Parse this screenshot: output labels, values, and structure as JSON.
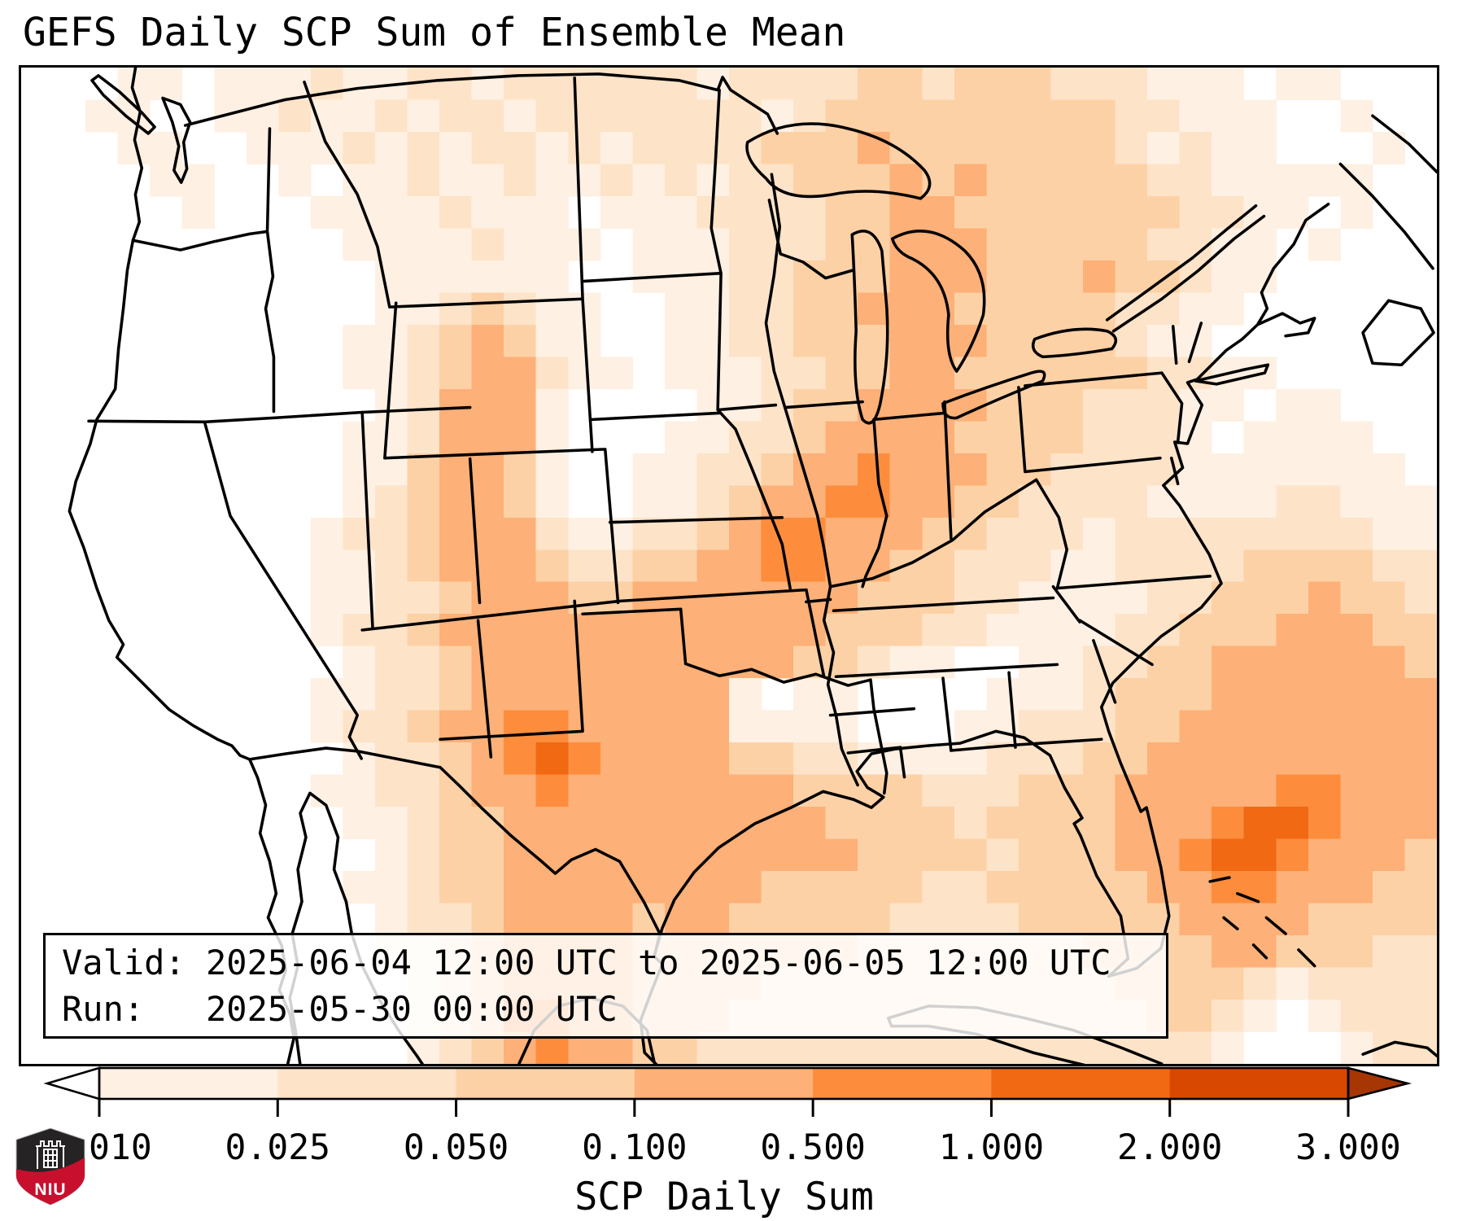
{
  "title": {
    "text": "GEFS Daily SCP Sum of Ensemble Mean"
  },
  "info_box": {
    "line1": "Valid: 2025-06-04 12:00 UTC to 2025-06-05 12:00 UTC",
    "line2": "Run:   2025-05-30 00:00 UTC"
  },
  "logo": {
    "label": "NIU",
    "shield_color": "#262324",
    "band_color": "#c8102e",
    "art_color": "#ffffff"
  },
  "chart_data": {
    "type": "heatmap",
    "title": "GEFS Daily SCP Sum of Ensemble Mean",
    "colorbar_label": "SCP Daily Sum",
    "boundaries": [
      0.01,
      0.025,
      0.05,
      0.1,
      0.5,
      1.0,
      2.0,
      3.0
    ],
    "tick_labels": [
      "0.010",
      "0.025",
      "0.050",
      "0.100",
      "0.500",
      "1.000",
      "2.000",
      "3.000"
    ],
    "extend": "both",
    "palette": {
      "under": "#ffffff",
      "bins": [
        "#fef0e2",
        "#fde3c8",
        "#fdd1a6",
        "#fdb077",
        "#fd8d3c",
        "#f16913",
        "#d94801"
      ],
      "over": "#a63603"
    },
    "region": "CONUS",
    "grid": {
      "cols": 44,
      "rows": 31,
      "legend": "one char per cell; 0 = below 0.01 (white), 1-7 = palette bins, 8 = above 3.0",
      "rows_data": [
        "00011011121122122222212222332333222111011000",
        "00110011211212212222222123333333332211100100",
        "00011001112121221212222333433333332121100010",
        "00001100101121121121212233343433333221111100",
        "00000100011112111011122223344333333322110100",
        "00000000001111211101112223344433333221101000",
        "00000000000111111001112233344433343321100000",
        "00000000000112321100112233444333332211000000",
        "00000000001123431100112233344433332110000000",
        "00000000001123442110111223344333333221100000",
        "00000000000124441000011233444433322211011000",
        "00000000001124441000112234444333322210111100",
        "00000000001134431001122344544433222211111110",
        "00000000001234431001123445544332222111122111",
        "00000000012234442112234554443322212222222211",
        "00000000011234443223344554433222112222333322",
        "00000000011223444334444444333221111223334332",
        "00000000012234444444444443332211112233344433",
        "00000000001223444444444433211001122334444443",
        "00000000011223444444441011000011123334444444",
        "00000000012234455444441111000112223344444444",
        "00000000001223456544443322111122233444444444",
        "00000000011223445444444433332223334444455444",
        "00000000001123344444444443333233334445665444",
        "00000000000123344444444444333323334456654443",
        "00000000001123344444444333332233333445544433",
        "00000000000122344443443333322223333344443333",
        "00000000000112344443333333222222233334433322",
        "00000000000012344443333222222222223333212222",
        "00000000000012355443332222222222222332101222",
        "00000000000012345443322222222222222221000122"
      ]
    }
  }
}
